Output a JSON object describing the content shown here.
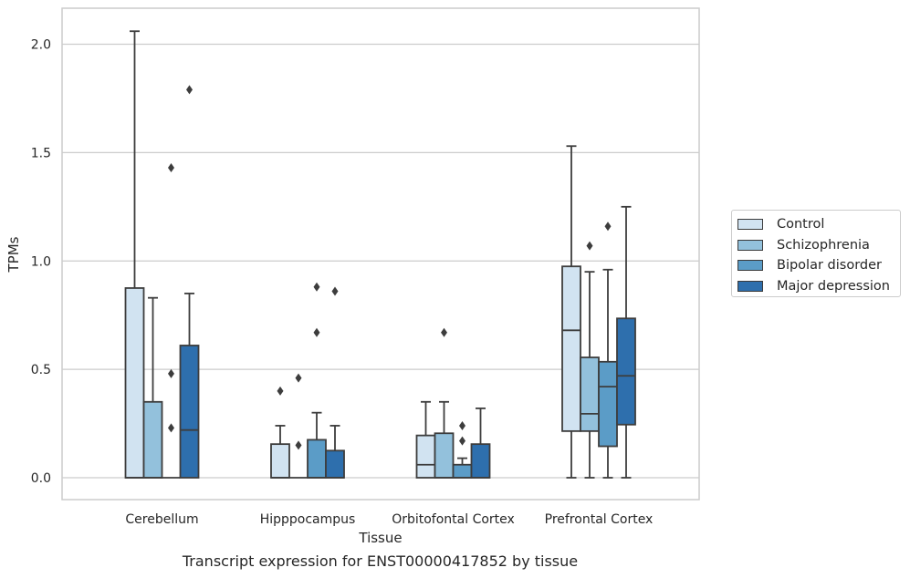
{
  "chart_data": {
    "type": "box",
    "caption": "Transcript expression for ENST00000417852 by tissue",
    "xlabel": "Tissue",
    "ylabel": "TPMs",
    "ylim": [
      -0.1,
      2.17
    ],
    "yticks": [
      "0.0",
      "0.5",
      "1.0",
      "1.5",
      "2.0"
    ],
    "ytick_values": [
      0.0,
      0.5,
      1.0,
      1.5,
      2.0
    ],
    "grid": "horizontal",
    "legend_position": "right-center",
    "categories": [
      "Cerebellum",
      "Hipppocampus",
      "Orbitofontal Cortex",
      "Prefrontal Cortex"
    ],
    "series": [
      {
        "name": "Control",
        "color": "#d1e3f1",
        "boxes": [
          {
            "q1": 0.0,
            "median": 0.0,
            "q3": 0.875,
            "whisker_low": 0.0,
            "whisker_high": 2.06,
            "outliers": []
          },
          {
            "q1": 0.0,
            "median": 0.0,
            "q3": 0.155,
            "whisker_low": 0.0,
            "whisker_high": 0.24,
            "outliers": [
              0.4
            ]
          },
          {
            "q1": 0.0,
            "median": 0.06,
            "q3": 0.195,
            "whisker_low": 0.0,
            "whisker_high": 0.35,
            "outliers": []
          },
          {
            "q1": 0.215,
            "median": 0.68,
            "q3": 0.975,
            "whisker_low": 0.0,
            "whisker_high": 1.53,
            "outliers": []
          }
        ]
      },
      {
        "name": "Schizophrenia",
        "color": "#93c1dc",
        "boxes": [
          {
            "q1": 0.0,
            "median": 0.0,
            "q3": 0.35,
            "whisker_low": 0.0,
            "whisker_high": 0.83,
            "outliers": []
          },
          {
            "q1": 0.0,
            "median": 0.0,
            "q3": 0.0,
            "whisker_low": 0.0,
            "whisker_high": 0.0,
            "outliers": [
              0.15,
              0.46
            ]
          },
          {
            "q1": 0.0,
            "median": 0.0,
            "q3": 0.205,
            "whisker_low": 0.0,
            "whisker_high": 0.35,
            "outliers": [
              0.67
            ]
          },
          {
            "q1": 0.215,
            "median": 0.295,
            "q3": 0.555,
            "whisker_low": 0.0,
            "whisker_high": 0.95,
            "outliers": [
              1.07
            ]
          }
        ]
      },
      {
        "name": "Bipolar disorder",
        "color": "#5b9cc7",
        "boxes": [
          {
            "q1": 0.0,
            "median": 0.0,
            "q3": 0.0,
            "whisker_low": 0.0,
            "whisker_high": 0.0,
            "outliers": [
              0.23,
              0.48,
              1.43
            ]
          },
          {
            "q1": 0.0,
            "median": 0.0,
            "q3": 0.175,
            "whisker_low": 0.0,
            "whisker_high": 0.3,
            "outliers": [
              0.67,
              0.88
            ]
          },
          {
            "q1": 0.0,
            "median": 0.0,
            "q3": 0.06,
            "whisker_low": 0.0,
            "whisker_high": 0.09,
            "outliers": [
              0.17,
              0.24
            ]
          },
          {
            "q1": 0.145,
            "median": 0.42,
            "q3": 0.535,
            "whisker_low": 0.0,
            "whisker_high": 0.96,
            "outliers": [
              1.16
            ]
          }
        ]
      },
      {
        "name": "Major depression",
        "color": "#2e6fad",
        "boxes": [
          {
            "q1": 0.0,
            "median": 0.22,
            "q3": 0.61,
            "whisker_low": 0.0,
            "whisker_high": 0.85,
            "outliers": [
              1.79
            ]
          },
          {
            "q1": 0.0,
            "median": 0.0,
            "q3": 0.125,
            "whisker_low": 0.0,
            "whisker_high": 0.24,
            "outliers": [
              0.86
            ]
          },
          {
            "q1": 0.0,
            "median": 0.0,
            "q3": 0.155,
            "whisker_low": 0.0,
            "whisker_high": 0.32,
            "outliers": []
          },
          {
            "q1": 0.245,
            "median": 0.47,
            "q3": 0.735,
            "whisker_low": 0.0,
            "whisker_high": 1.25,
            "outliers": []
          }
        ]
      }
    ]
  }
}
